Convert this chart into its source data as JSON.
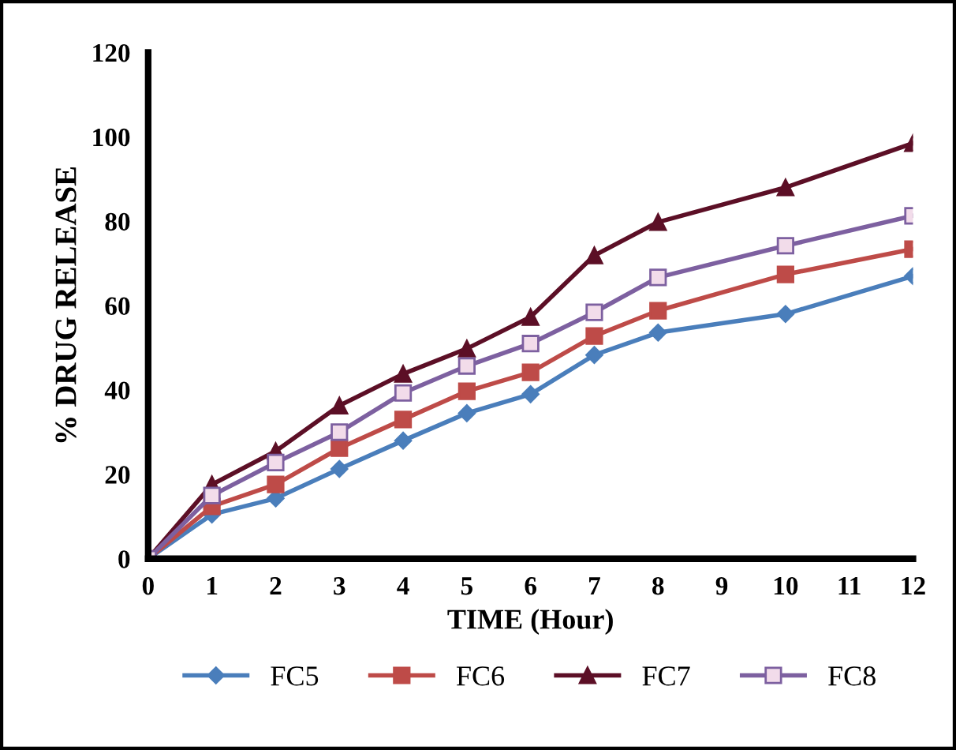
{
  "chart_data": {
    "type": "line",
    "xlabel": "TIME (Hour)",
    "ylabel": "% DRUG RELEASE",
    "x": [
      0,
      1,
      2,
      3,
      4,
      5,
      6,
      7,
      8,
      10,
      12
    ],
    "series": [
      {
        "name": "FC5",
        "color": "#4a7ebb",
        "marker": "diamond",
        "values": [
          0,
          10.5,
          14.3,
          21.3,
          28,
          34.5,
          39,
          48.3,
          53.6,
          58,
          67
        ]
      },
      {
        "name": "FC6",
        "color": "#be4b48",
        "marker": "square",
        "values": [
          0,
          12.4,
          17.6,
          26.2,
          33,
          39.7,
          44.2,
          52.8,
          58.8,
          67.4,
          73.4
        ]
      },
      {
        "name": "FC7",
        "color": "#5c0f26",
        "marker": "triangle",
        "values": [
          0,
          17.6,
          25.5,
          36.3,
          43.8,
          49.8,
          57.3,
          71.9,
          79.8,
          88,
          98.5
        ]
      },
      {
        "name": "FC8",
        "color": "#7d60a0",
        "marker": "square",
        "values": [
          0,
          15,
          22.8,
          30,
          39.3,
          45.7,
          51,
          58.4,
          66.7,
          74.2,
          81.3
        ]
      }
    ],
    "xlim": [
      0,
      12
    ],
    "xticks": [
      0,
      1,
      2,
      3,
      4,
      5,
      6,
      7,
      8,
      9,
      10,
      11,
      12
    ],
    "ylim": [
      0,
      120
    ],
    "yticks": [
      0,
      20,
      40,
      60,
      80,
      100,
      120
    ],
    "grid": false,
    "legend": "bottom",
    "line_style": "solid"
  }
}
